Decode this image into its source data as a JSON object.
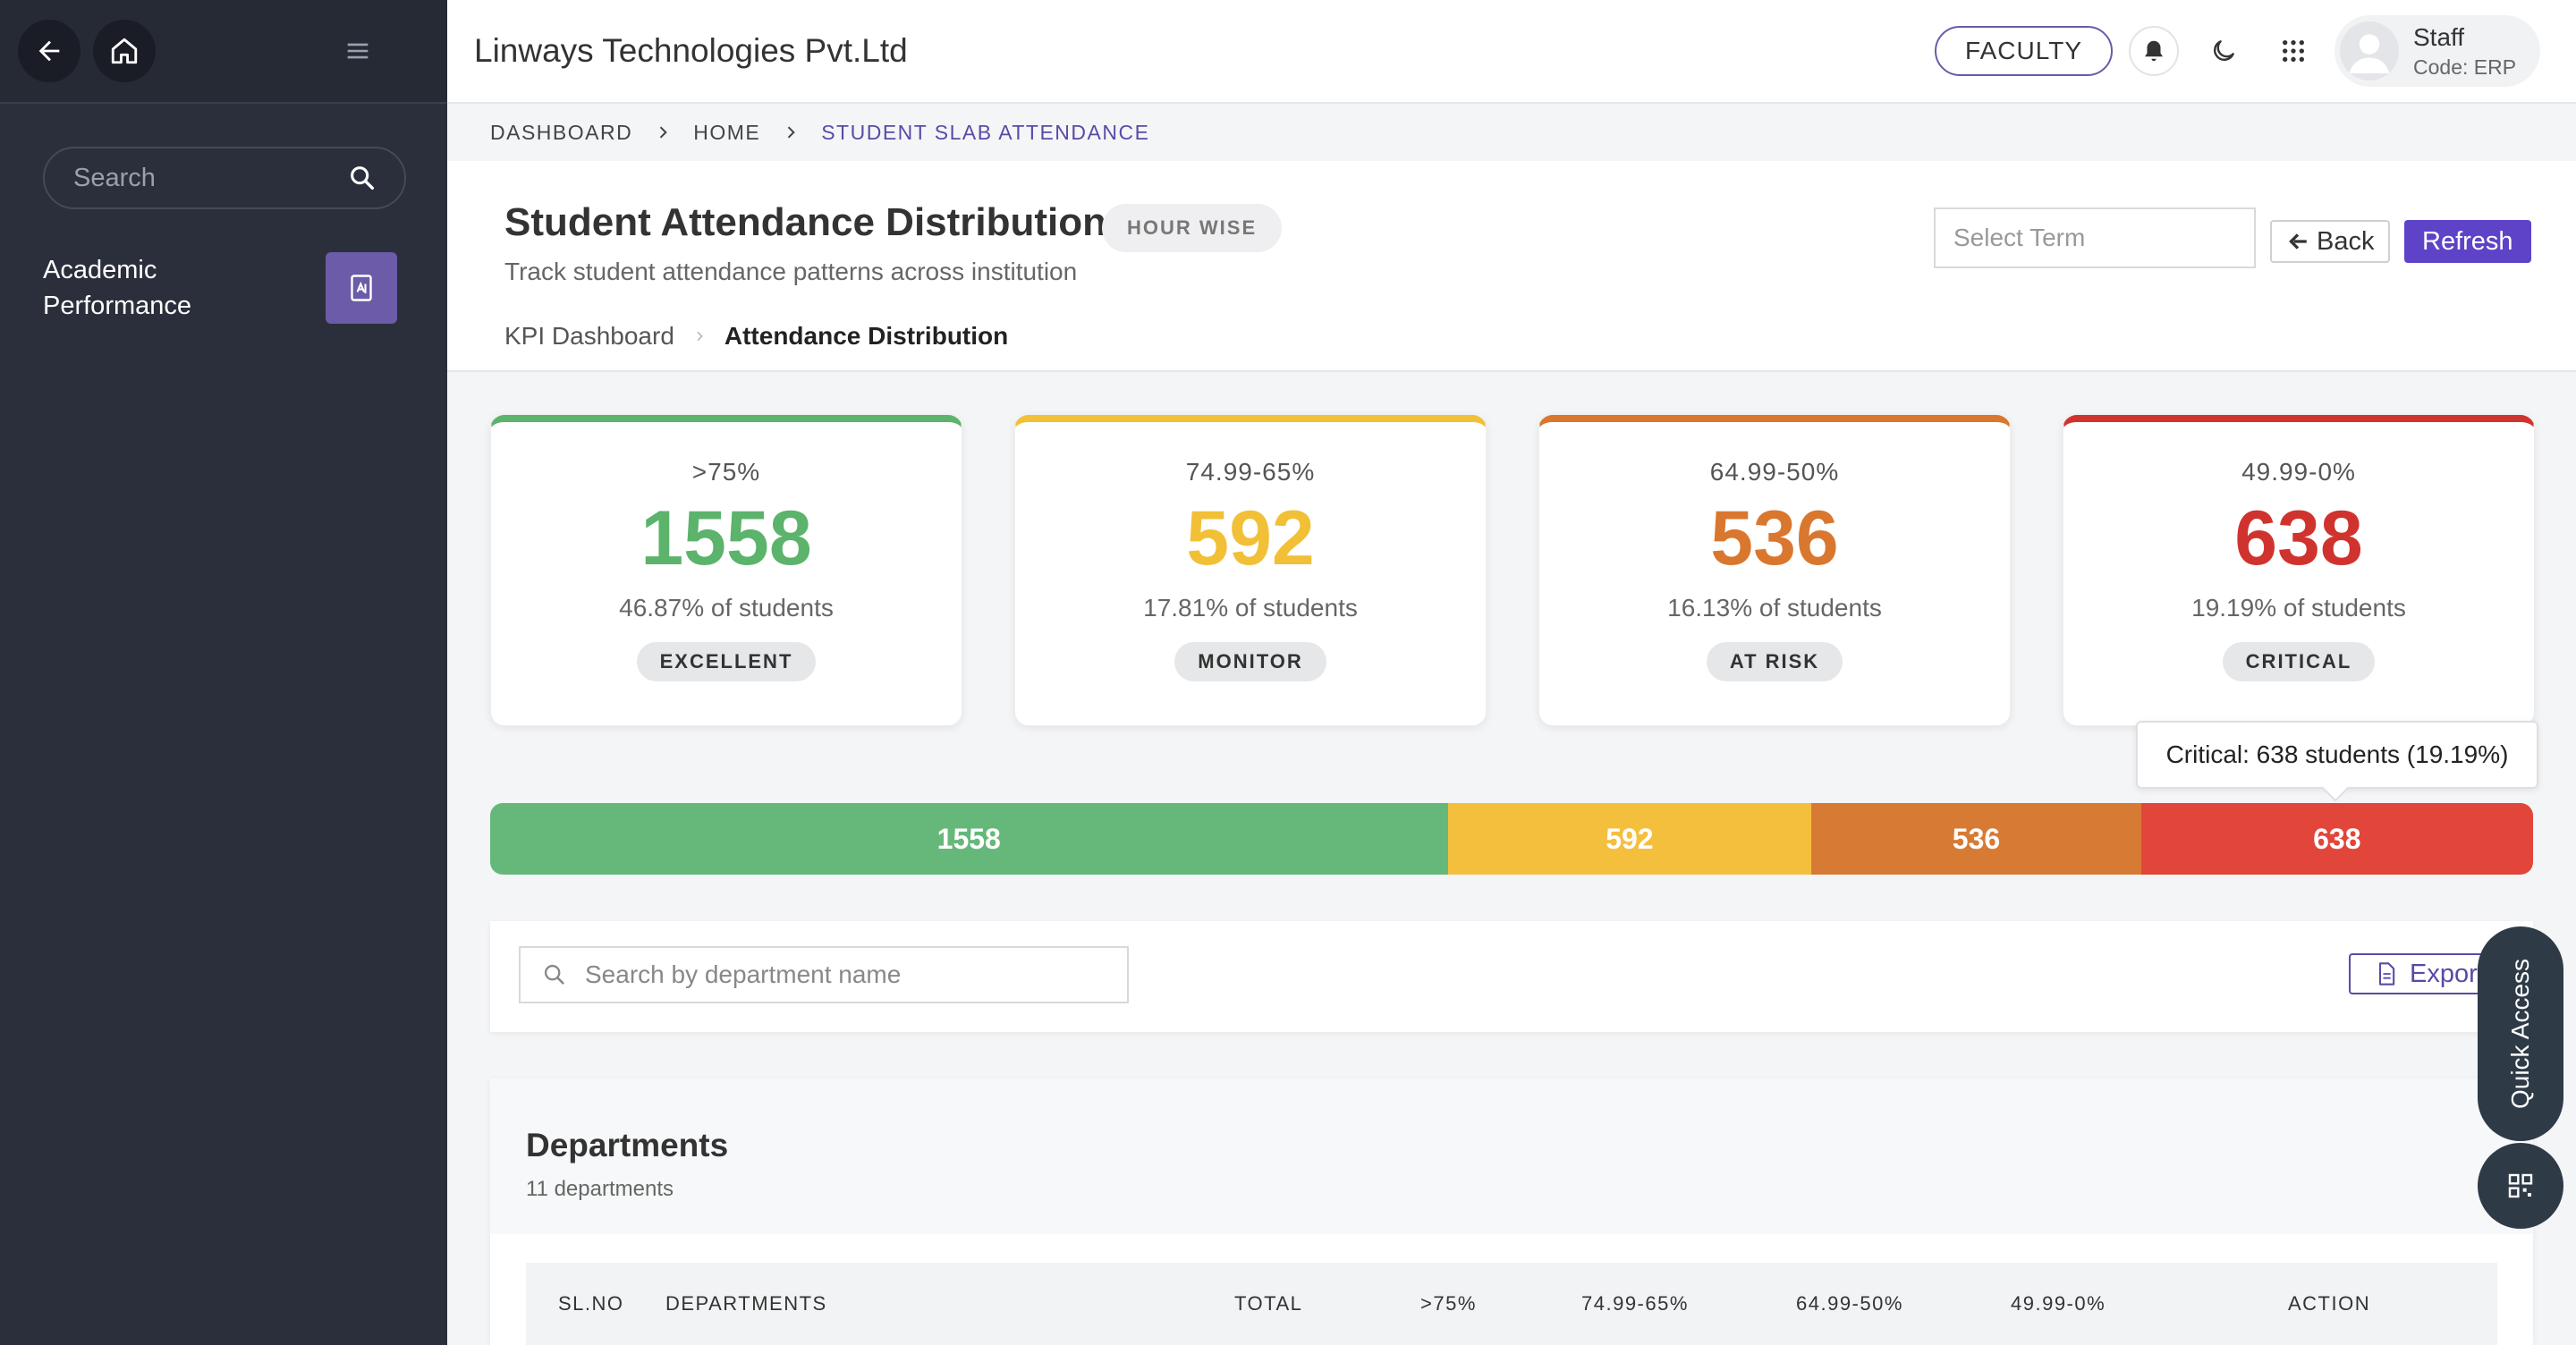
{
  "sidebar": {
    "search_placeholder": "Search",
    "items": [
      {
        "label": "Academic Performance"
      }
    ]
  },
  "header": {
    "org_name": "Linways Technologies Pvt.Ltd",
    "role_button": "FACULTY",
    "user": {
      "name": "Staff",
      "code": "Code: ERP"
    }
  },
  "breadcrumb": [
    "DASHBOARD",
    "HOME",
    "STUDENT SLAB ATTENDANCE"
  ],
  "page": {
    "title": "Student Attendance Distribution",
    "badge": "HOUR WISE",
    "subtitle": "Track student attendance patterns across institution",
    "select_term_placeholder": "Select Term",
    "back_label": "Back",
    "refresh_label": "Refresh",
    "subnav": [
      "KPI Dashboard",
      "Attendance Distribution"
    ]
  },
  "cards": [
    {
      "range": ">75%",
      "value": "1558",
      "pct": "46.87% of students",
      "badge": "EXCELLENT",
      "color": "#5cb36b"
    },
    {
      "range": "74.99-65%",
      "value": "592",
      "pct": "17.81% of students",
      "badge": "MONITOR",
      "color": "#f2c037"
    },
    {
      "range": "64.99-50%",
      "value": "536",
      "pct": "16.13% of students",
      "badge": "AT RISK",
      "color": "#d9772f"
    },
    {
      "range": "49.99-0%",
      "value": "638",
      "pct": "19.19% of students",
      "badge": "CRITICAL",
      "color": "#d0332e"
    }
  ],
  "tooltip": "Critical: 638 students (19.19%)",
  "distribution": {
    "segments": [
      {
        "label": "1558",
        "fraction": 0.4687,
        "color": "#66b87a"
      },
      {
        "label": "592",
        "fraction": 0.1781,
        "color": "#f5bf3e"
      },
      {
        "label": "536",
        "fraction": 0.1613,
        "color": "#d77a34"
      },
      {
        "label": "638",
        "fraction": 0.1919,
        "color": "#e2453a"
      }
    ]
  },
  "filters": {
    "dept_search_placeholder": "Search by department name",
    "export_label": "Export"
  },
  "departments": {
    "title": "Departments",
    "count": "11 departments",
    "columns": [
      "SL.NO",
      "DEPARTMENTS",
      "TOTAL",
      ">75%",
      "74.99-65%",
      "64.99-50%",
      "49.99-0%",
      "ACTION"
    ]
  },
  "quick_access": {
    "label": "Quick Access"
  }
}
